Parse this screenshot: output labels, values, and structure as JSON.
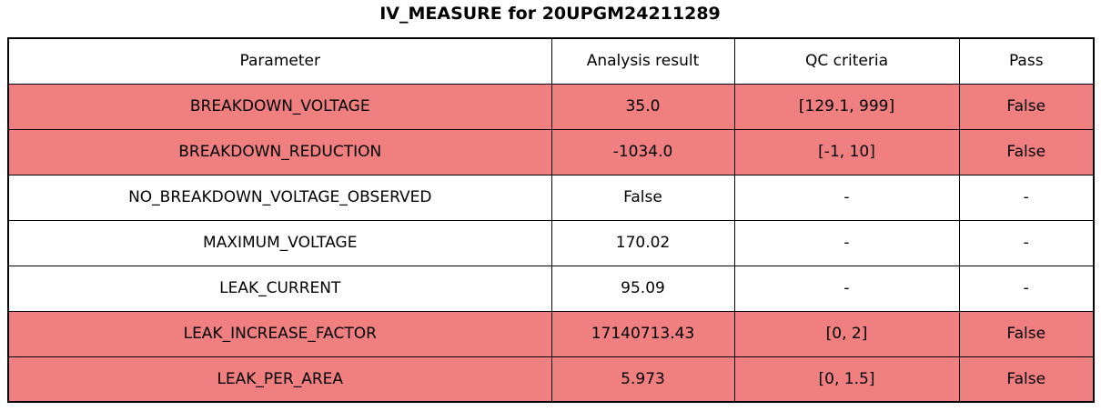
{
  "title": "IV_MEASURE for 20UPGM24211289",
  "chart_data": {
    "type": "table",
    "title": "IV_MEASURE for 20UPGM24211289",
    "columns": [
      "Parameter",
      "Analysis result",
      "QC criteria",
      "Pass"
    ],
    "rows": [
      {
        "parameter": "BREAKDOWN_VOLTAGE",
        "analysis_result": "35.0",
        "qc_criteria": "[129.1, 999]",
        "pass": "False",
        "highlighted": true
      },
      {
        "parameter": "BREAKDOWN_REDUCTION",
        "analysis_result": "-1034.0",
        "qc_criteria": "[-1, 10]",
        "pass": "False",
        "highlighted": true
      },
      {
        "parameter": "NO_BREAKDOWN_VOLTAGE_OBSERVED",
        "analysis_result": "False",
        "qc_criteria": "-",
        "pass": "-",
        "highlighted": false
      },
      {
        "parameter": "MAXIMUM_VOLTAGE",
        "analysis_result": "170.02",
        "qc_criteria": "-",
        "pass": "-",
        "highlighted": false
      },
      {
        "parameter": "LEAK_CURRENT",
        "analysis_result": "95.09",
        "qc_criteria": "-",
        "pass": "-",
        "highlighted": false
      },
      {
        "parameter": "LEAK_INCREASE_FACTOR",
        "analysis_result": "17140713.43",
        "qc_criteria": "[0, 2]",
        "pass": "False",
        "highlighted": true
      },
      {
        "parameter": "LEAK_PER_AREA",
        "analysis_result": "5.973",
        "qc_criteria": "[0, 1.5]",
        "pass": "False",
        "highlighted": true
      }
    ],
    "colors": {
      "fail_row_bg": "#f08080",
      "normal_row_bg": "#ffffff",
      "border": "#000000",
      "text": "#000000"
    },
    "legend_position": "none",
    "grid": "full-cell-borders"
  }
}
